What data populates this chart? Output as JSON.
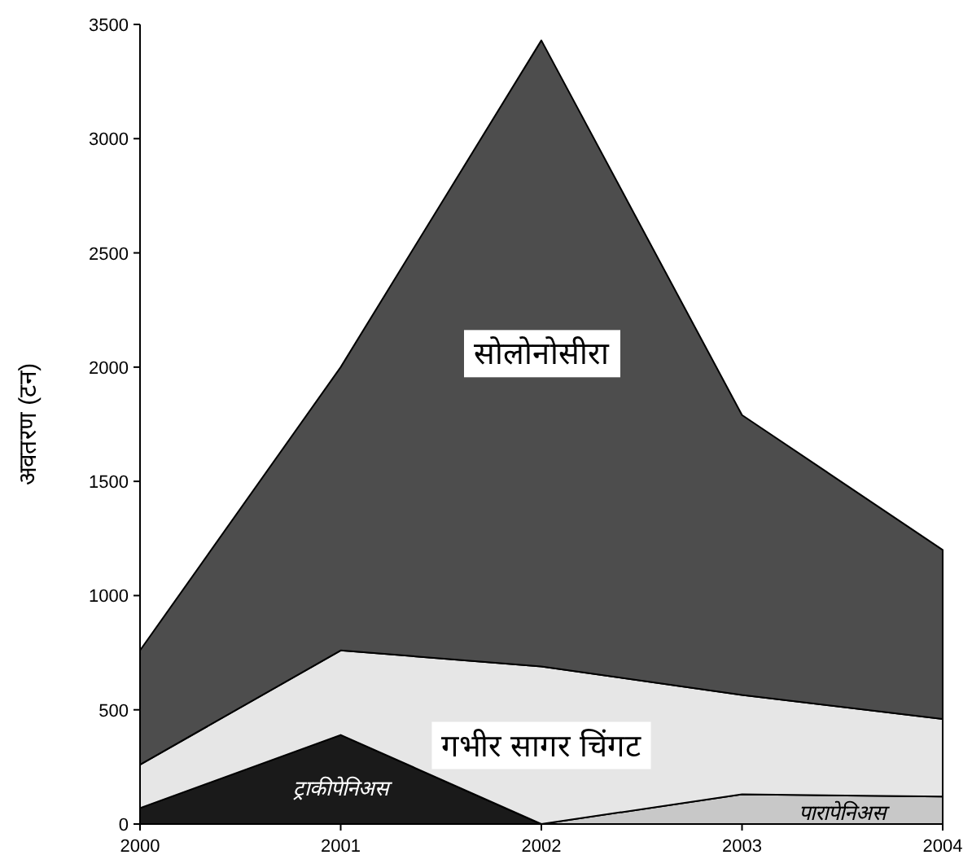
{
  "chart_data": {
    "type": "area",
    "stacked": true,
    "ylabel": "अवतरण (टन)",
    "categories": [
      "2000",
      "2001",
      "2002",
      "2003",
      "2004"
    ],
    "ylim": [
      0,
      3500
    ],
    "yticks": [
      0,
      500,
      1000,
      1500,
      2000,
      2500,
      3000,
      3500
    ],
    "grid": false,
    "series": [
      {
        "name": "ट्राकीपेनिअस",
        "color": "#1a1a1a",
        "values": [
          70,
          390,
          0,
          null,
          null
        ]
      },
      {
        "name": "पारापेनिअस",
        "color": "#c8c8c8",
        "values": [
          null,
          null,
          0,
          130,
          120
        ]
      },
      {
        "name": "गभीर सागर चिंगट",
        "color": "#e6e6e6",
        "values": [
          190,
          370,
          690,
          435,
          340
        ]
      },
      {
        "name": "सोलोनोसीरा",
        "color": "#4d4d4d",
        "values": [
          500,
          1240,
          2740,
          1225,
          740
        ]
      }
    ]
  }
}
